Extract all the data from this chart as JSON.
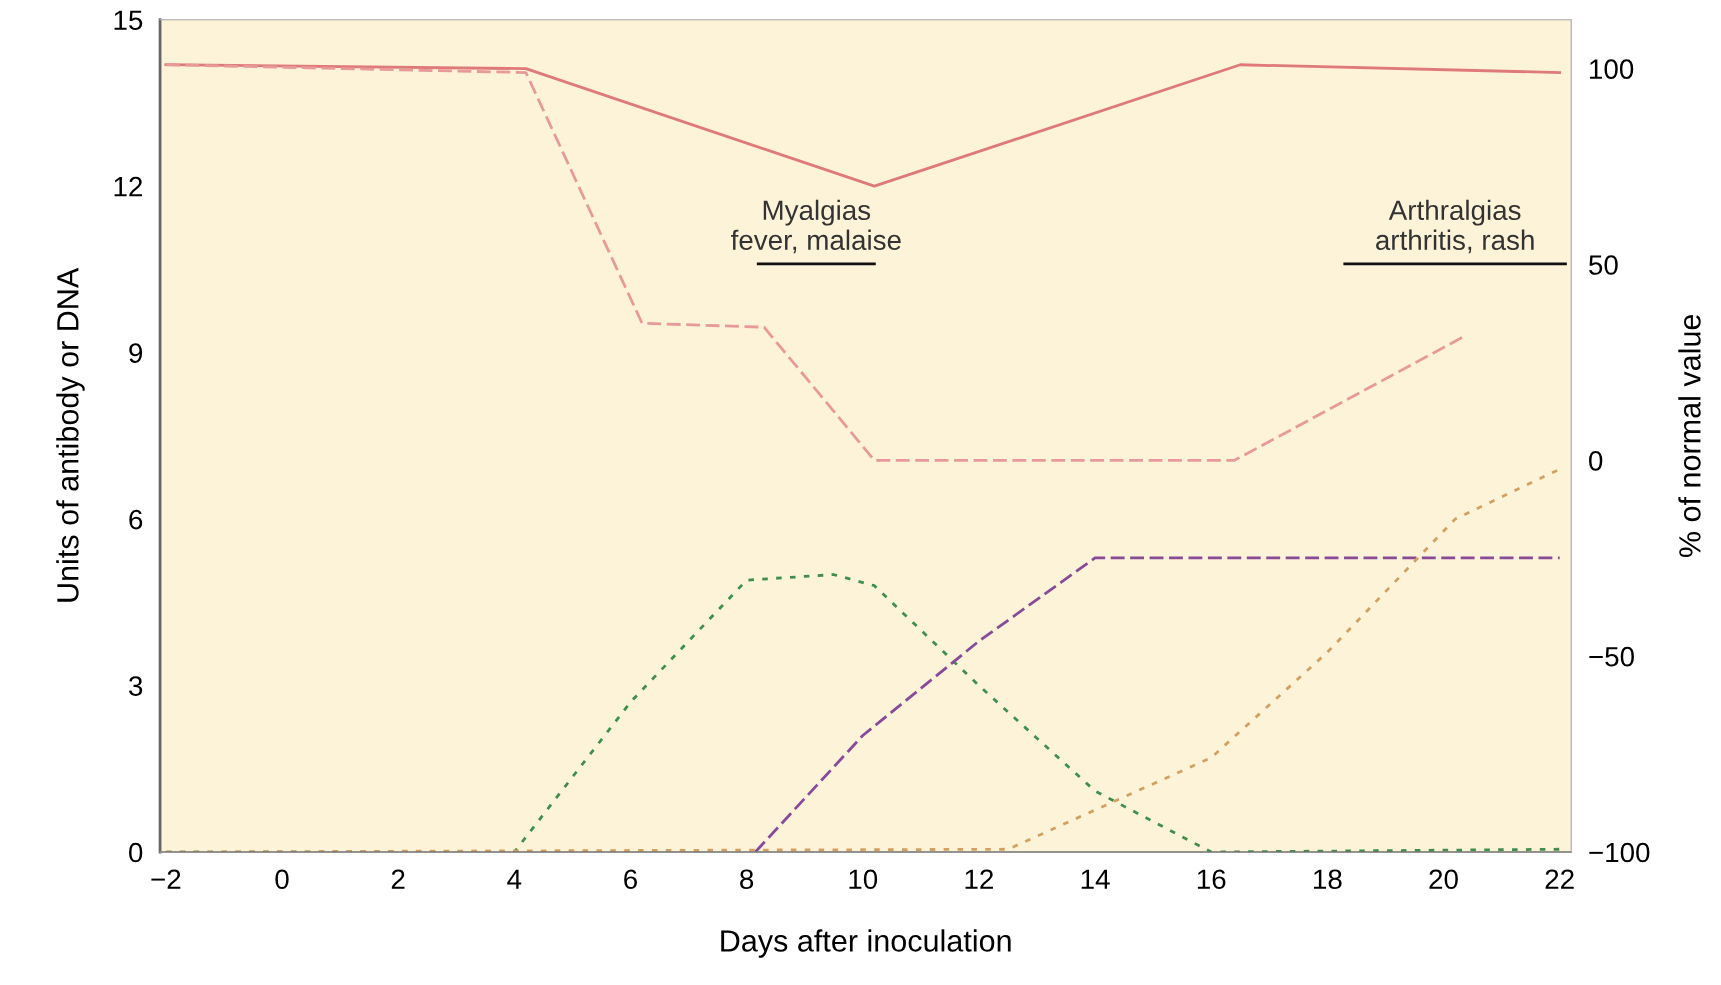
{
  "chart_data": {
    "type": "line",
    "xlabel": "Days after inoculation",
    "ylabel": "Units of antibody or DNA",
    "y2label": "% of normal value",
    "xlim": [
      -2.1,
      22.2
    ],
    "xticks": [
      {
        "value": -2,
        "label": "−2"
      },
      0,
      2,
      4,
      6,
      8,
      10,
      12,
      14,
      16,
      18,
      20,
      22
    ],
    "ylim": [
      0,
      15
    ],
    "yticks": [
      0,
      3,
      6,
      9,
      12,
      15
    ],
    "y2lim": [
      -100,
      112.5
    ],
    "y2ticks": [
      {
        "value": -100,
        "label": "−100"
      },
      {
        "value": -50,
        "label": "−50"
      },
      0,
      50,
      100
    ],
    "grid": false,
    "legend": false,
    "marker": "none",
    "series": [
      {
        "color": "#e07a7a",
        "line_style": "solid",
        "axis": "y2",
        "x": [
          -2,
          4.2,
          10.2,
          16.5,
          22
        ],
        "values": [
          101,
          100,
          70,
          101,
          99
        ]
      },
      {
        "color": "#e89a9a",
        "line_style": "dashed",
        "axis": "y2",
        "x": [
          -2,
          4.2,
          6.2,
          8.3,
          10.2,
          16.4,
          20.4
        ],
        "values": [
          101,
          99,
          35,
          34,
          0,
          0,
          32
        ]
      },
      {
        "color": "#3f8f4f",
        "line_style": "dotted",
        "x": [
          -2,
          4,
          6,
          8,
          9.5,
          10.2,
          12,
          14,
          16,
          22
        ],
        "values": [
          0,
          0,
          2.7,
          4.9,
          5.0,
          4.8,
          3.0,
          1.1,
          0,
          0.05
        ]
      },
      {
        "color": "#8a4a9a",
        "line_style": "dashed",
        "x": [
          8.15,
          10,
          12,
          14,
          22
        ],
        "values": [
          0,
          2.1,
          3.8,
          5.3,
          5.3
        ]
      },
      {
        "color": "#d4a060",
        "line_style": "dotted",
        "x": [
          -2,
          12.5,
          16,
          18,
          20.2,
          22
        ],
        "values": [
          0,
          0.05,
          1.7,
          3.6,
          6.0,
          6.9
        ]
      },
      {
        "color": "#111111",
        "line_style": "solid",
        "x": [
          8.2,
          10.2
        ],
        "values": [
          10.6,
          10.6
        ]
      },
      {
        "color": "#111111",
        "line_style": "solid",
        "x": [
          18.3,
          22.1
        ],
        "values": [
          10.6,
          10.6
        ]
      }
    ],
    "annotations": [
      "Myalgias\nfever, malaise",
      "Arthralgias\narthritis, rash"
    ]
  }
}
